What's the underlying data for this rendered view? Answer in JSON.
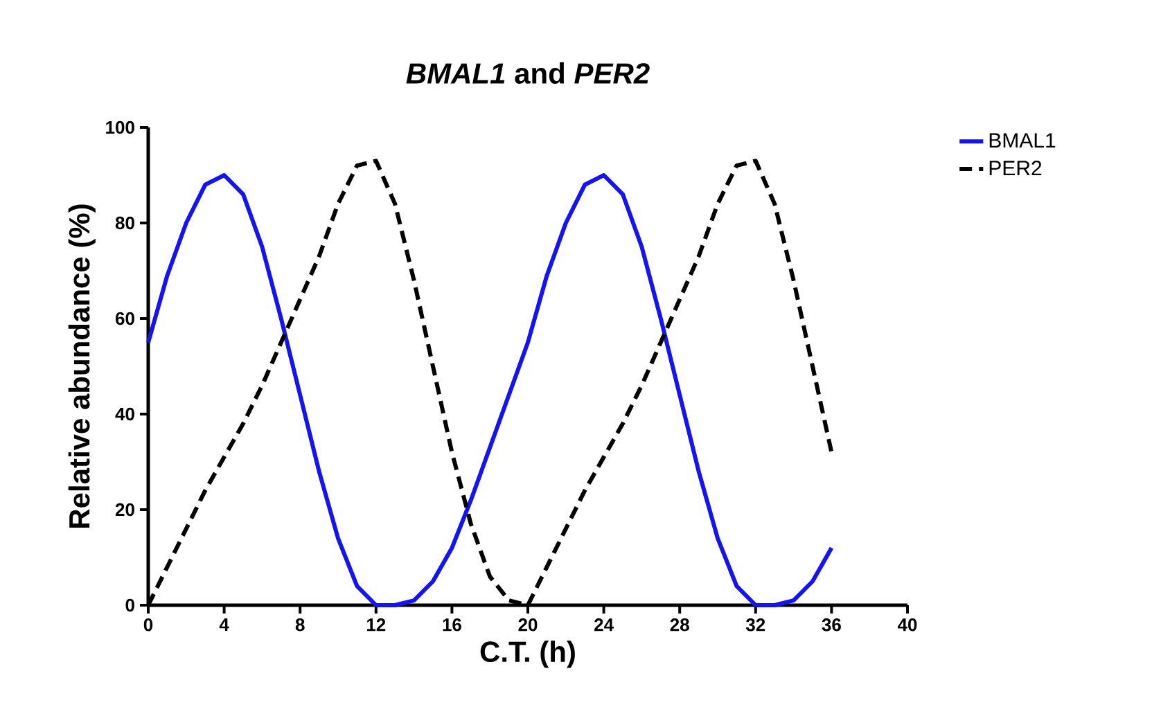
{
  "chart_data": {
    "type": "line",
    "title": "*BMAL1* and *PER2*",
    "xlabel": "C.T. (h)",
    "ylabel": "Relative abundance (%)",
    "x": [
      0,
      1,
      2,
      3,
      4,
      5,
      6,
      7,
      8,
      9,
      10,
      11,
      12,
      13,
      14,
      15,
      16,
      17,
      18,
      19,
      20,
      21,
      22,
      23,
      24,
      25,
      26,
      27,
      28,
      29,
      30,
      31,
      32,
      33,
      34,
      35,
      36
    ],
    "series": [
      {
        "name": "BMAL1",
        "color": "#1414f0",
        "line_style": "solid",
        "values": [
          55,
          69,
          80,
          88,
          90,
          86,
          75,
          60,
          44,
          28,
          14,
          4,
          0,
          0,
          1,
          5,
          12,
          22,
          33,
          44,
          55,
          69,
          80,
          88,
          90,
          86,
          75,
          60,
          44,
          28,
          14,
          4,
          0,
          0,
          1,
          5,
          12
        ]
      },
      {
        "name": "PER2",
        "color": "#000000",
        "line_style": "dashed",
        "values": [
          0,
          8,
          16,
          24,
          31,
          38,
          46,
          55,
          64,
          73,
          84,
          92,
          93,
          84,
          68,
          50,
          32,
          17,
          6,
          1,
          0,
          8,
          16,
          24,
          31,
          38,
          46,
          55,
          64,
          73,
          84,
          92,
          93,
          84,
          68,
          50,
          32
        ]
      }
    ],
    "xlim": [
      0,
      40
    ],
    "xticks": [
      0,
      4,
      8,
      12,
      16,
      20,
      24,
      28,
      32,
      36,
      40
    ],
    "ylim": [
      0,
      100
    ],
    "yticks": [
      0,
      20,
      40,
      60,
      80,
      100
    ],
    "grid": false,
    "legend": "top right",
    "marker": "none"
  }
}
